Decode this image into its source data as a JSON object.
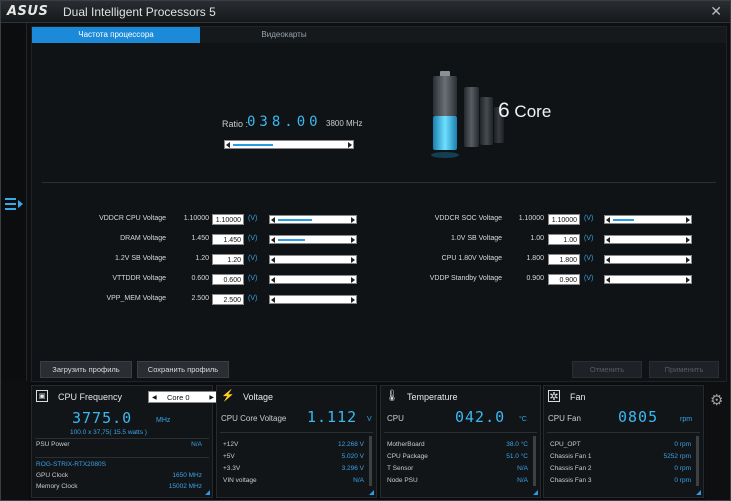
{
  "titlebar": {
    "logo": "ASUS",
    "title": "Dual Intelligent Processors 5",
    "close": "✕"
  },
  "tabs": [
    {
      "label": "Частота процессора"
    },
    {
      "label": "Видеокарты"
    }
  ],
  "ratio": {
    "label": "Ratio :",
    "value": "038.00",
    "mhz": "3800 MHz",
    "slider_fraction": 0.35
  },
  "core": {
    "num": "6",
    "label": "Core"
  },
  "voltages_left": [
    {
      "label": "VDDCR CPU Voltage",
      "default": "1.10000",
      "value": "1.10000",
      "unit": "(V)",
      "slider": 0.45
    },
    {
      "label": "DRAM Voltage",
      "default": "1.450",
      "value": "1.450",
      "unit": "(V)",
      "slider": 0.35
    },
    {
      "label": "1.2V SB Voltage",
      "default": "1.20",
      "value": "1.20",
      "unit": "(V)",
      "slider": 0
    },
    {
      "label": "VTTDDR Voltage",
      "default": "0.600",
      "value": "0.600",
      "unit": "(V)",
      "slider": 0
    },
    {
      "label": "VPP_MEM Voltage",
      "default": "2.500",
      "value": "2.500",
      "unit": "(V)",
      "slider": 0
    }
  ],
  "voltages_right": [
    {
      "label": "VDDCR SOC Voltage",
      "default": "1.10000",
      "value": "1.10000",
      "unit": "(V)",
      "slider": 0.28
    },
    {
      "label": "1.0V SB Voltage",
      "default": "1.00",
      "value": "1.00",
      "unit": "(V)",
      "slider": 0
    },
    {
      "label": "CPU 1.80V Voltage",
      "default": "1.800",
      "value": "1.800",
      "unit": "(V)",
      "slider": 0
    },
    {
      "label": "VDDP Standby Voltage",
      "default": "0.900",
      "value": "0.900",
      "unit": "(V)",
      "slider": 0
    }
  ],
  "buttons": {
    "load": "Загрузить профиль",
    "save": "Сохранить профиль",
    "cancel": "Отменить",
    "apply": "Применить"
  },
  "cpu_freq": {
    "title": "CPU Frequency",
    "core_select": "Core 0",
    "value": "3775.0",
    "unit": "MHz",
    "sub": "100.0  x  37,75( 15.5 watts )",
    "rows": [
      {
        "label": "PSU Power",
        "value": "N/A"
      }
    ],
    "gpu_name": "ROG-STRIX-RTX2080S",
    "gpu_rows": [
      {
        "label": "GPU Clock",
        "value": "1650 MHz"
      },
      {
        "label": "Memory Clock",
        "value": "15002 MHz"
      }
    ]
  },
  "voltage": {
    "title": "Voltage",
    "main_label": "CPU Core Voltage",
    "value": "1.112",
    "unit": "V",
    "rows": [
      {
        "label": "+12V",
        "value": "12.268 V"
      },
      {
        "label": "+5V",
        "value": "5.020 V"
      },
      {
        "label": "+3.3V",
        "value": "3.296 V"
      },
      {
        "label": "VIN voltage",
        "value": "N/A"
      }
    ]
  },
  "temperature": {
    "title": "Temperature",
    "main_label": "CPU",
    "value": "042.0",
    "unit": "°C",
    "rows": [
      {
        "label": "MotherBoard",
        "value": "38.0 °C"
      },
      {
        "label": "CPU Package",
        "value": "51.0 °C"
      },
      {
        "label": "T Sensor",
        "value": "N/A"
      },
      {
        "label": "Node PSU",
        "value": "N/A"
      }
    ]
  },
  "fan": {
    "title": "Fan",
    "main_label": "CPU Fan",
    "value": "0805",
    "unit": "rpm",
    "rows": [
      {
        "label": "CPU_OPT",
        "value": "0  rpm"
      },
      {
        "label": "Chassis Fan 1",
        "value": "5252  rpm"
      },
      {
        "label": "Chassis Fan 2",
        "value": "0  rpm"
      },
      {
        "label": "Chassis Fan 3",
        "value": "0  rpm"
      }
    ]
  }
}
